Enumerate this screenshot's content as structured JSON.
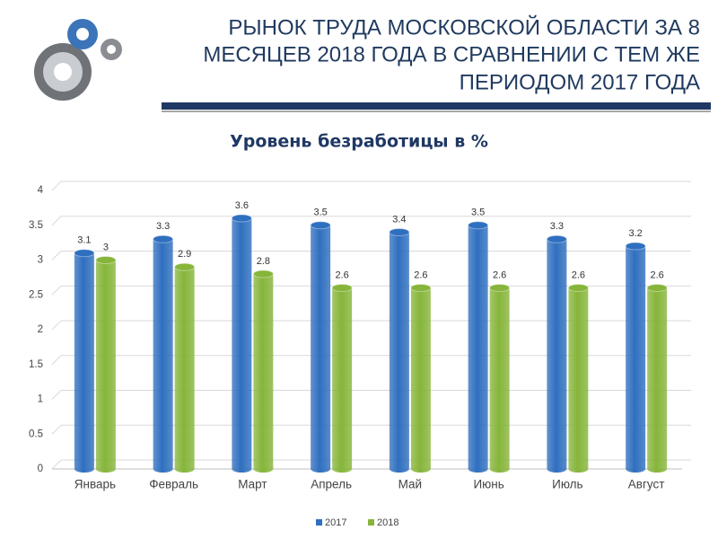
{
  "slide_title": [
    "РЫНОК ТРУДА МОСКОВСКОЙ ОБЛАСТИ ЗА 8",
    "МЕСЯЦЕВ 2018 ГОДА В СРАВНЕНИИ С ТЕМ ЖЕ",
    "ПЕРИОДОМ 2017 ГОДА"
  ],
  "chart_data": {
    "type": "bar",
    "title": "Уровень безработицы в %",
    "categories": [
      "Январь",
      "Февраль",
      "Март",
      "Апрель",
      "Май",
      "Июнь",
      "Июль",
      "Август"
    ],
    "series": [
      {
        "name": "2017",
        "color": "#2f6fbf",
        "values": [
          3.1,
          3.3,
          3.6,
          3.5,
          3.4,
          3.5,
          3.3,
          3.2
        ]
      },
      {
        "name": "2018",
        "color": "#86b53a",
        "values": [
          3,
          2.9,
          2.8,
          2.6,
          2.6,
          2.6,
          2.6,
          2.6
        ]
      }
    ],
    "ylim": [
      0,
      4
    ],
    "yticks": [
      0,
      0.5,
      1,
      1.5,
      2,
      2.5,
      3,
      3.5,
      4
    ],
    "grid": true,
    "legend": "bottom"
  }
}
